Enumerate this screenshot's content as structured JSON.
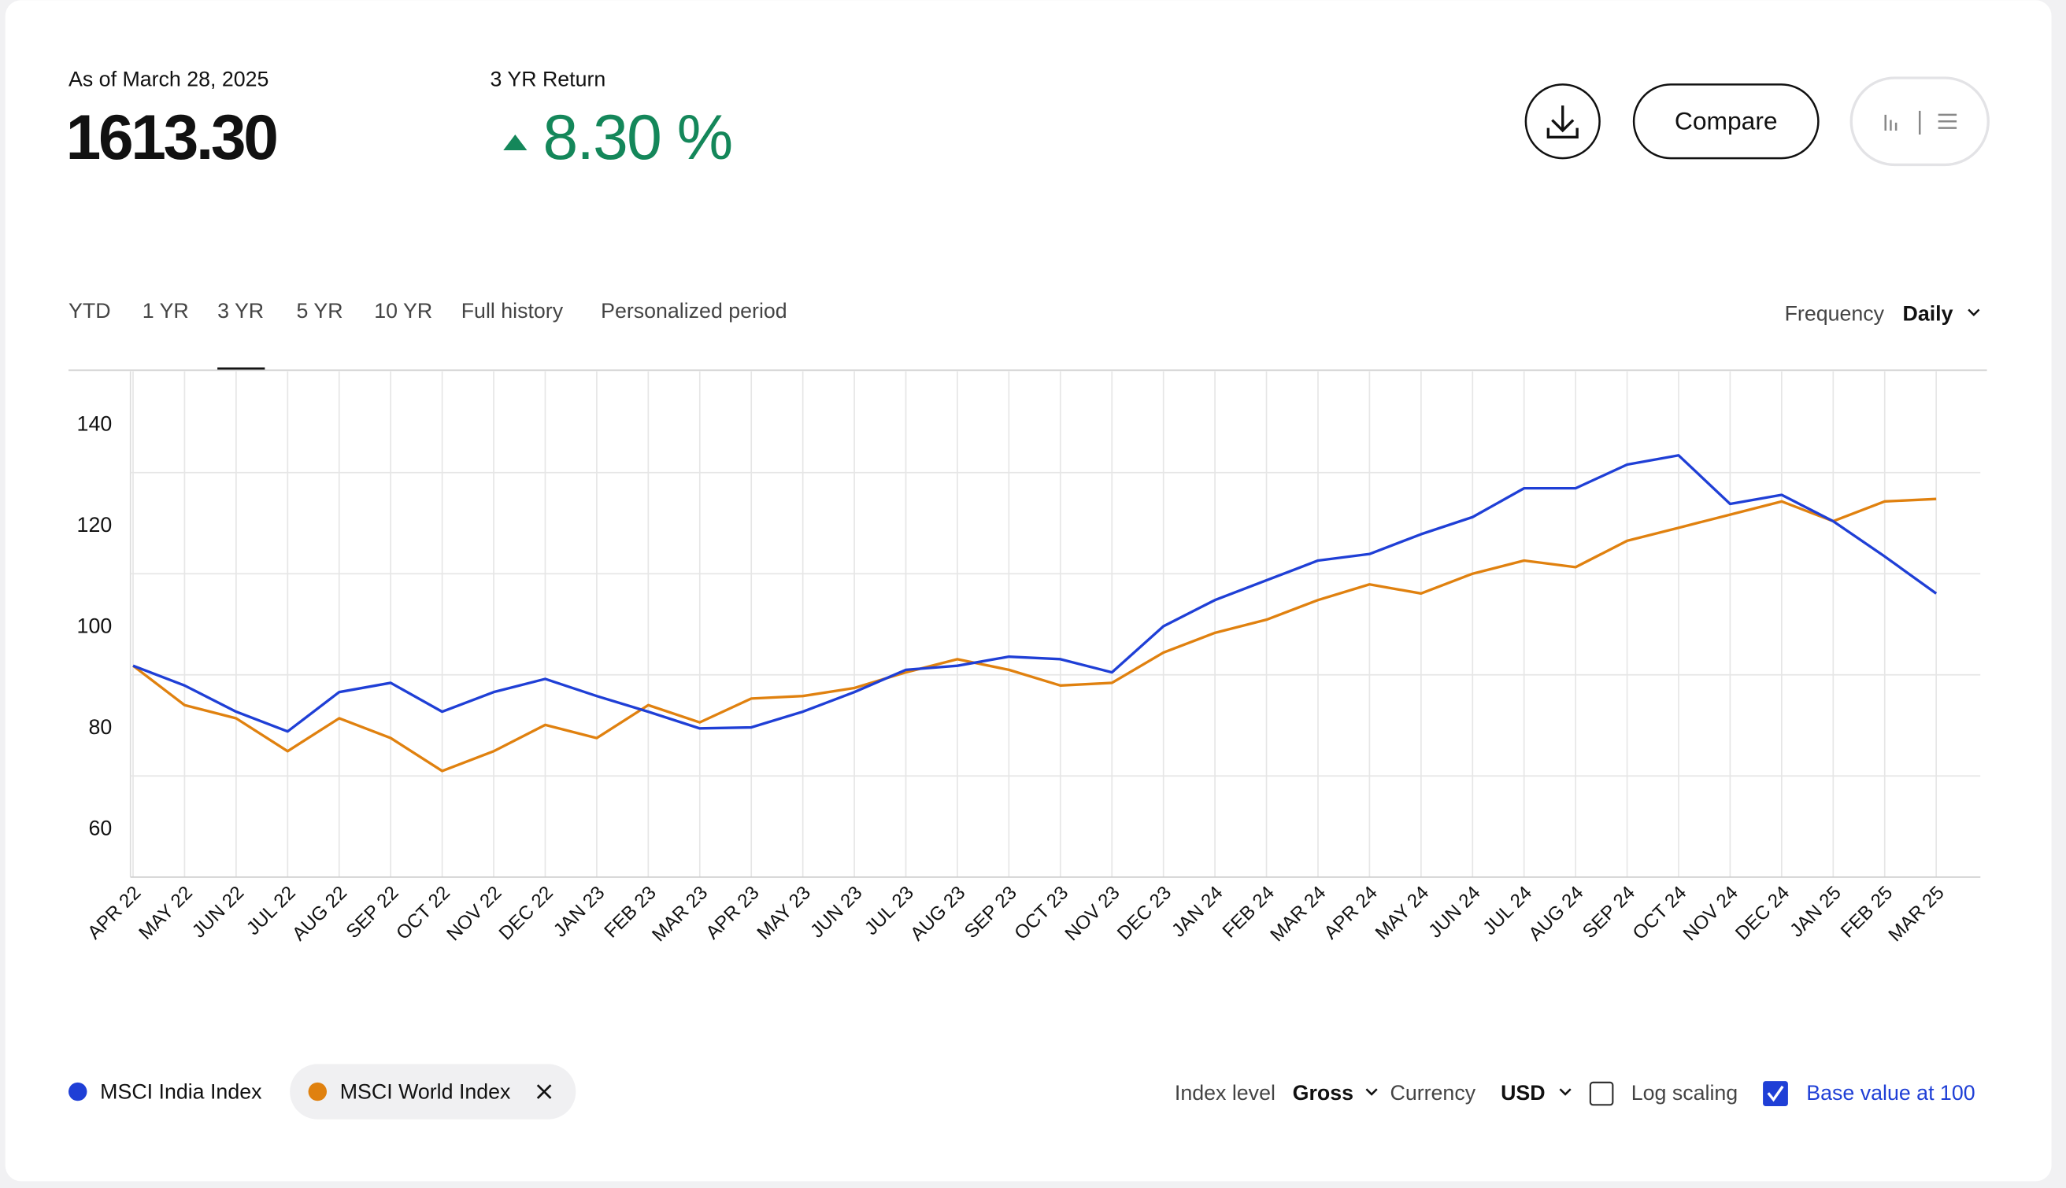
{
  "header": {
    "as_of": "As of March 28, 2025",
    "level": "1613.30",
    "return_label": "3 YR Return",
    "return_value": "8.30 %",
    "compare": "Compare"
  },
  "tabs": [
    "YTD",
    "1 YR",
    "3 YR",
    "5 YR",
    "10 YR",
    "Full history",
    "Personalized period"
  ],
  "frequency": {
    "label": "Frequency",
    "value": "Daily"
  },
  "controls": {
    "index_level_label": "Index level",
    "index_level": "Gross",
    "currency_label": "Currency",
    "currency": "USD",
    "log_label": "Log scaling",
    "base_label": "Base value at 100",
    "base_checked": true
  },
  "chart_data": {
    "type": "line",
    "log_scale": false,
    "grid": true,
    "x": [
      "APR 22",
      "MAY 22",
      "JUN 22",
      "JUL 22",
      "AUG 22",
      "SEP 22",
      "OCT 22",
      "NOV 22",
      "DEC 22",
      "JAN 23",
      "FEB 23",
      "MAR 23",
      "APR 23",
      "MAY 23",
      "JUN 23",
      "JUL 23",
      "AUG 23",
      "SEP 23",
      "OCT 23",
      "NOV 23",
      "DEC 23",
      "JAN 24",
      "FEB 24",
      "MAR 24",
      "APR 24",
      "MAY 24",
      "JUN 24",
      "JUL 24",
      "AUG 24",
      "SEP 24",
      "OCT 24",
      "NOV 24",
      "DEC 24",
      "JAN 25",
      "FEB 25",
      "MAR 25"
    ],
    "ylim": [
      60,
      160
    ],
    "yticks": [
      60,
      80,
      100,
      120,
      140
    ],
    "series": [
      {
        "name": "MSCI India Index",
        "color": "#1f3fd6",
        "values": [
          101.8,
          97.9,
          92.7,
          88.8,
          96.6,
          98.4,
          92.7,
          96.6,
          99.2,
          95.8,
          92.7,
          89.4,
          89.6,
          92.7,
          96.6,
          101.0,
          101.8,
          103.6,
          103.1,
          100.5,
          109.6,
          114.8,
          118.7,
          122.6,
          123.9,
          127.8,
          131.2,
          136.9,
          136.9,
          141.6,
          143.4,
          133.8,
          135.6,
          130.4,
          123.4,
          116.1
        ]
      },
      {
        "name": "MSCI World Index",
        "color": "#e0810f",
        "values": [
          101.8,
          94.0,
          91.4,
          84.9,
          91.4,
          87.5,
          81.0,
          84.9,
          90.1,
          87.5,
          94.0,
          90.6,
          95.3,
          95.8,
          97.4,
          100.5,
          103.1,
          101.0,
          97.9,
          98.4,
          104.4,
          108.3,
          110.9,
          114.8,
          117.9,
          116.1,
          120.0,
          122.6,
          121.3,
          126.5,
          129.1,
          131.7,
          134.3,
          130.4,
          134.3,
          134.8
        ]
      }
    ]
  }
}
